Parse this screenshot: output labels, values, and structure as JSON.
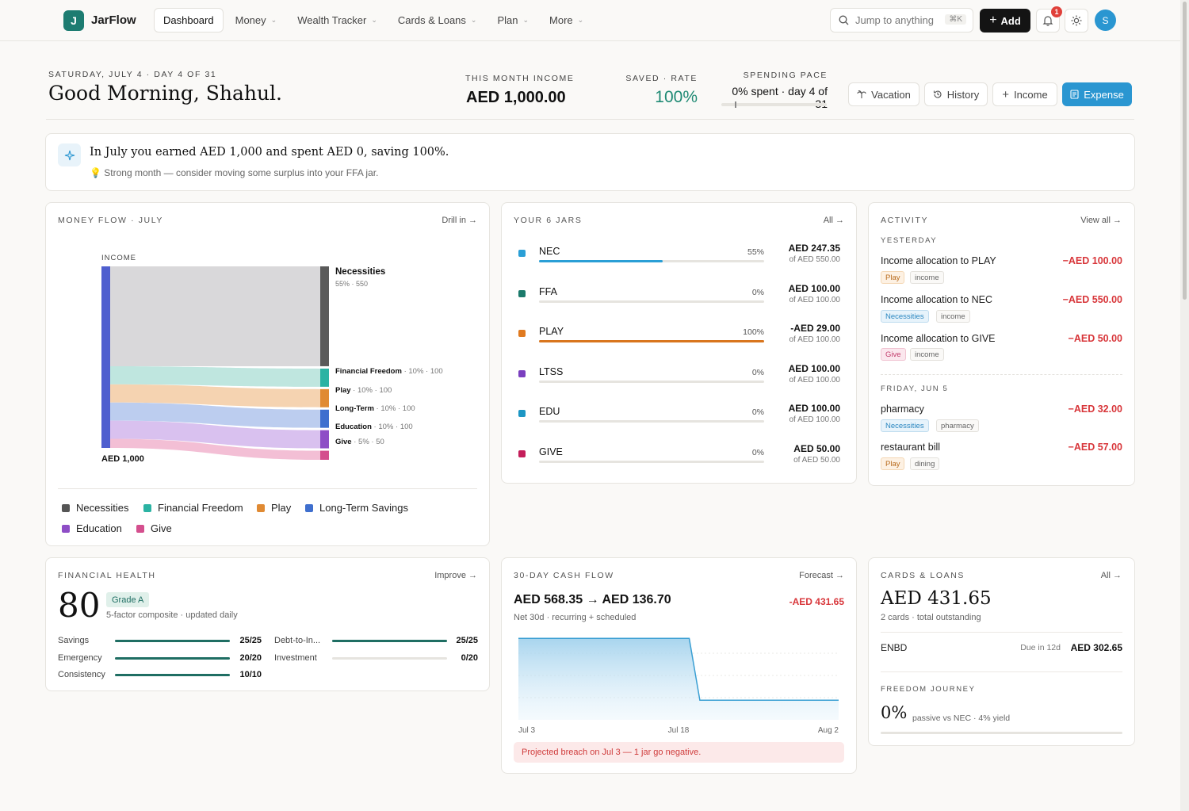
{
  "app": {
    "logo_letter": "J",
    "name": "JarFlow"
  },
  "nav": [
    {
      "label": "Dashboard"
    },
    {
      "label": "Money"
    },
    {
      "label": "Wealth Tracker"
    },
    {
      "label": "Cards & Loans"
    },
    {
      "label": "Plan"
    },
    {
      "label": "More"
    }
  ],
  "search": {
    "placeholder": "Jump to anything",
    "shortcut": "⌘K"
  },
  "toolbar": {
    "add_label": "Add",
    "notification_count": "1",
    "avatar_initial": "S"
  },
  "header": {
    "date_line": "SATURDAY, JULY 4 · DAY 4 OF 31",
    "greeting": "Good Morning, Shahul.",
    "income_label": "THIS MONTH INCOME",
    "income_value": "AED 1,000.00",
    "saved_label": "SAVED · RATE",
    "saved_value": "100%",
    "pace_label": "SPENDING PACE",
    "pace_value": "0% spent · day 4 of 31",
    "pace_progress": 0.13,
    "buttons": {
      "vacation": "Vacation",
      "history": "History",
      "income": "Income",
      "expense": "Expense"
    }
  },
  "insight": {
    "headline": "In July you earned AED 1,000 and spent AED 0, saving 100%.",
    "tip": "💡 Strong month — consider moving some surplus into your FFA jar."
  },
  "money_flow": {
    "title": "MONEY FLOW · JULY",
    "link": "Drill in →",
    "source_label": "INCOME",
    "source_amount": "AED 1,000",
    "targets": [
      {
        "name": "Necessities",
        "detail": "55% · 550",
        "color": "#5a5a5a",
        "band": "#d9d8da"
      },
      {
        "name": "Financial Freedom",
        "detail": " · 10% · 100",
        "color": "#2bb3a3",
        "band": "#bfe6df"
      },
      {
        "name": "Play",
        "detail": " · 10% · 100",
        "color": "#e08a33",
        "band": "#f5d3b1"
      },
      {
        "name": "Long-Term",
        "detail": " · 10% · 100",
        "color": "#3f6fce",
        "band": "#bccdef"
      },
      {
        "name": "Education",
        "detail": " · 10% · 100",
        "color": "#8e4ec6",
        "band": "#d9c1ef"
      },
      {
        "name": "Give",
        "detail": " · 5% · 50",
        "color": "#d44f8e",
        "band": "#f3bfd5"
      }
    ],
    "legend": [
      "Necessities",
      "Financial Freedom",
      "Play",
      "Long-Term Savings",
      "Education",
      "Give"
    ]
  },
  "jars": {
    "title": "YOUR 6 JARS",
    "link": "All →",
    "items": [
      {
        "name": "NEC",
        "pct": "55%",
        "progress": 0.55,
        "amount": "AED 247.35",
        "of": "of AED 550.00",
        "color": "#2a9fd6",
        "bar": "#2a9fd6"
      },
      {
        "name": "FFA",
        "pct": "0%",
        "progress": 0,
        "amount": "AED 100.00",
        "of": "of AED 100.00",
        "color": "#1b7a6b",
        "bar": "#1b7a6b"
      },
      {
        "name": "PLAY",
        "pct": "100%",
        "progress": 1,
        "amount": "-AED 29.00",
        "of": "of AED 100.00",
        "color": "#e07a1f",
        "bar": "#d9761e"
      },
      {
        "name": "LTSS",
        "pct": "0%",
        "progress": 0,
        "amount": "AED 100.00",
        "of": "of AED 100.00",
        "color": "#7a3fbf",
        "bar": "#7a3fbf"
      },
      {
        "name": "EDU",
        "pct": "0%",
        "progress": 0,
        "amount": "AED 100.00",
        "of": "of AED 100.00",
        "color": "#1c96c4",
        "bar": "#1c96c4"
      },
      {
        "name": "GIVE",
        "pct": "0%",
        "progress": 0,
        "amount": "AED 50.00",
        "of": "of AED 50.00",
        "color": "#c41e5a",
        "bar": "#c41e5a"
      }
    ]
  },
  "activity": {
    "title": "ACTIVITY",
    "link": "View all →",
    "sections": [
      {
        "label": "YESTERDAY",
        "items": [
          {
            "title": "Income allocation to PLAY",
            "amount": "−AED 100.00",
            "tags": [
              "Play",
              "income"
            ]
          },
          {
            "title": "Income allocation to NEC",
            "amount": "−AED 550.00",
            "tags": [
              "Necessities",
              "income"
            ]
          },
          {
            "title": "Income allocation to GIVE",
            "amount": "−AED 50.00",
            "tags": [
              "Give",
              "income"
            ]
          }
        ]
      },
      {
        "label": "FRIDAY, JUN 5",
        "items": [
          {
            "title": "pharmacy",
            "amount": "−AED 32.00",
            "tags": [
              "Necessities",
              "pharmacy"
            ]
          },
          {
            "title": "restaurant bill",
            "amount": "−AED 57.00",
            "tags": [
              "Play",
              "dining"
            ]
          }
        ]
      }
    ]
  },
  "health": {
    "title": "FINANCIAL HEALTH",
    "link": "Improve →",
    "score": "80",
    "grade": "Grade A",
    "caption": "5-factor composite · updated daily",
    "factors": [
      {
        "label": "Savings",
        "value": "25/25",
        "fraction": 1
      },
      {
        "label": "Emergency",
        "value": "20/20",
        "fraction": 1
      },
      {
        "label": "Consistency",
        "value": "10/10",
        "fraction": 1
      },
      {
        "label": "Debt-to-In...",
        "value": "25/25",
        "fraction": 1
      },
      {
        "label": "Investment",
        "value": "0/20",
        "fraction": 0
      }
    ]
  },
  "cashflow": {
    "title": "30-DAY CASH FLOW",
    "link": "Forecast →",
    "summary": "AED 568.35 → AED 136.70",
    "delta": "-AED 431.65",
    "caption": "Net 30d · recurring + scheduled",
    "warning": "Projected breach on Jul 3 — 1 jar go negative.",
    "chart_data": {
      "type": "area",
      "x": [
        "Jul 3",
        "Jul 18",
        "Aug 2"
      ],
      "x_ticks": [
        "Jul 3",
        "Jul 18",
        "Aug 2"
      ],
      "series": [
        {
          "points": [
            [
              0,
              568.35
            ],
            [
              16,
              568.35
            ],
            [
              17,
              136.7
            ],
            [
              30,
              136.7
            ]
          ]
        }
      ],
      "ylim": [
        0,
        620
      ],
      "color": "#3a9fd3",
      "grid": true
    }
  },
  "cards": {
    "title": "CARDS & LOANS",
    "link": "All →",
    "total": "AED 431.65",
    "caption": "2 cards · total outstanding",
    "items": [
      {
        "name": "ENBD",
        "due": "Due in 12d",
        "amount": "AED 302.65"
      }
    ],
    "freedom_title": "FREEDOM JOURNEY",
    "freedom_value": "0%",
    "freedom_caption": "passive vs NEC · 4% yield",
    "freedom_progress": 0
  }
}
